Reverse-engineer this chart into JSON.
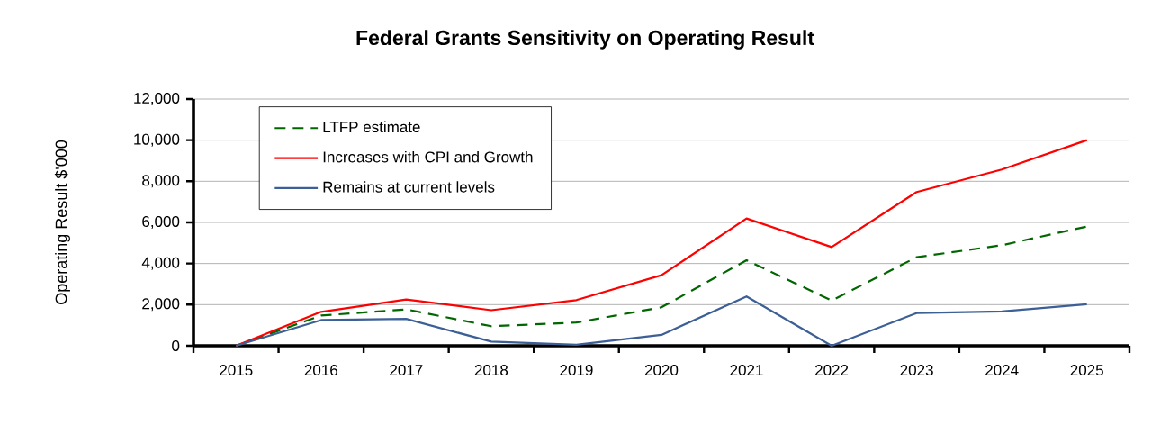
{
  "chart_data": {
    "type": "line",
    "title": "Federal Grants Sensitivity on Operating Result",
    "ylabel": "Operating Result $'000",
    "categories": [
      "2015",
      "2016",
      "2017",
      "2018",
      "2019",
      "2020",
      "2021",
      "2022",
      "2023",
      "2024",
      "2025"
    ],
    "series": [
      {
        "name": "LTFP estimate",
        "color": "#006600",
        "line_style": "dashed",
        "values": [
          0,
          1470,
          1770,
          950,
          1130,
          1870,
          4160,
          2200,
          4310,
          4890,
          5800
        ]
      },
      {
        "name": "Increases with CPI and Growth",
        "color": "#ff0000",
        "line_style": "solid",
        "values": [
          0,
          1650,
          2250,
          1730,
          2220,
          3430,
          6190,
          4800,
          7480,
          8570,
          10000
        ]
      },
      {
        "name": "Remains at current levels",
        "color": "#3c5f96",
        "line_style": "solid",
        "values": [
          0,
          1250,
          1310,
          200,
          50,
          530,
          2400,
          0,
          1590,
          1670,
          2020
        ]
      }
    ],
    "ylim": [
      0,
      12000
    ],
    "yticks": [
      {
        "value": 0,
        "label": "0"
      },
      {
        "value": 2000,
        "label": "2,000"
      },
      {
        "value": 4000,
        "label": "4,000"
      },
      {
        "value": 6000,
        "label": "6,000"
      },
      {
        "value": 8000,
        "label": "8,000"
      },
      {
        "value": 10000,
        "label": "10,000"
      },
      {
        "value": 12000,
        "label": "12,000"
      }
    ],
    "grid": "y",
    "legend": "top left",
    "marker": "none"
  }
}
